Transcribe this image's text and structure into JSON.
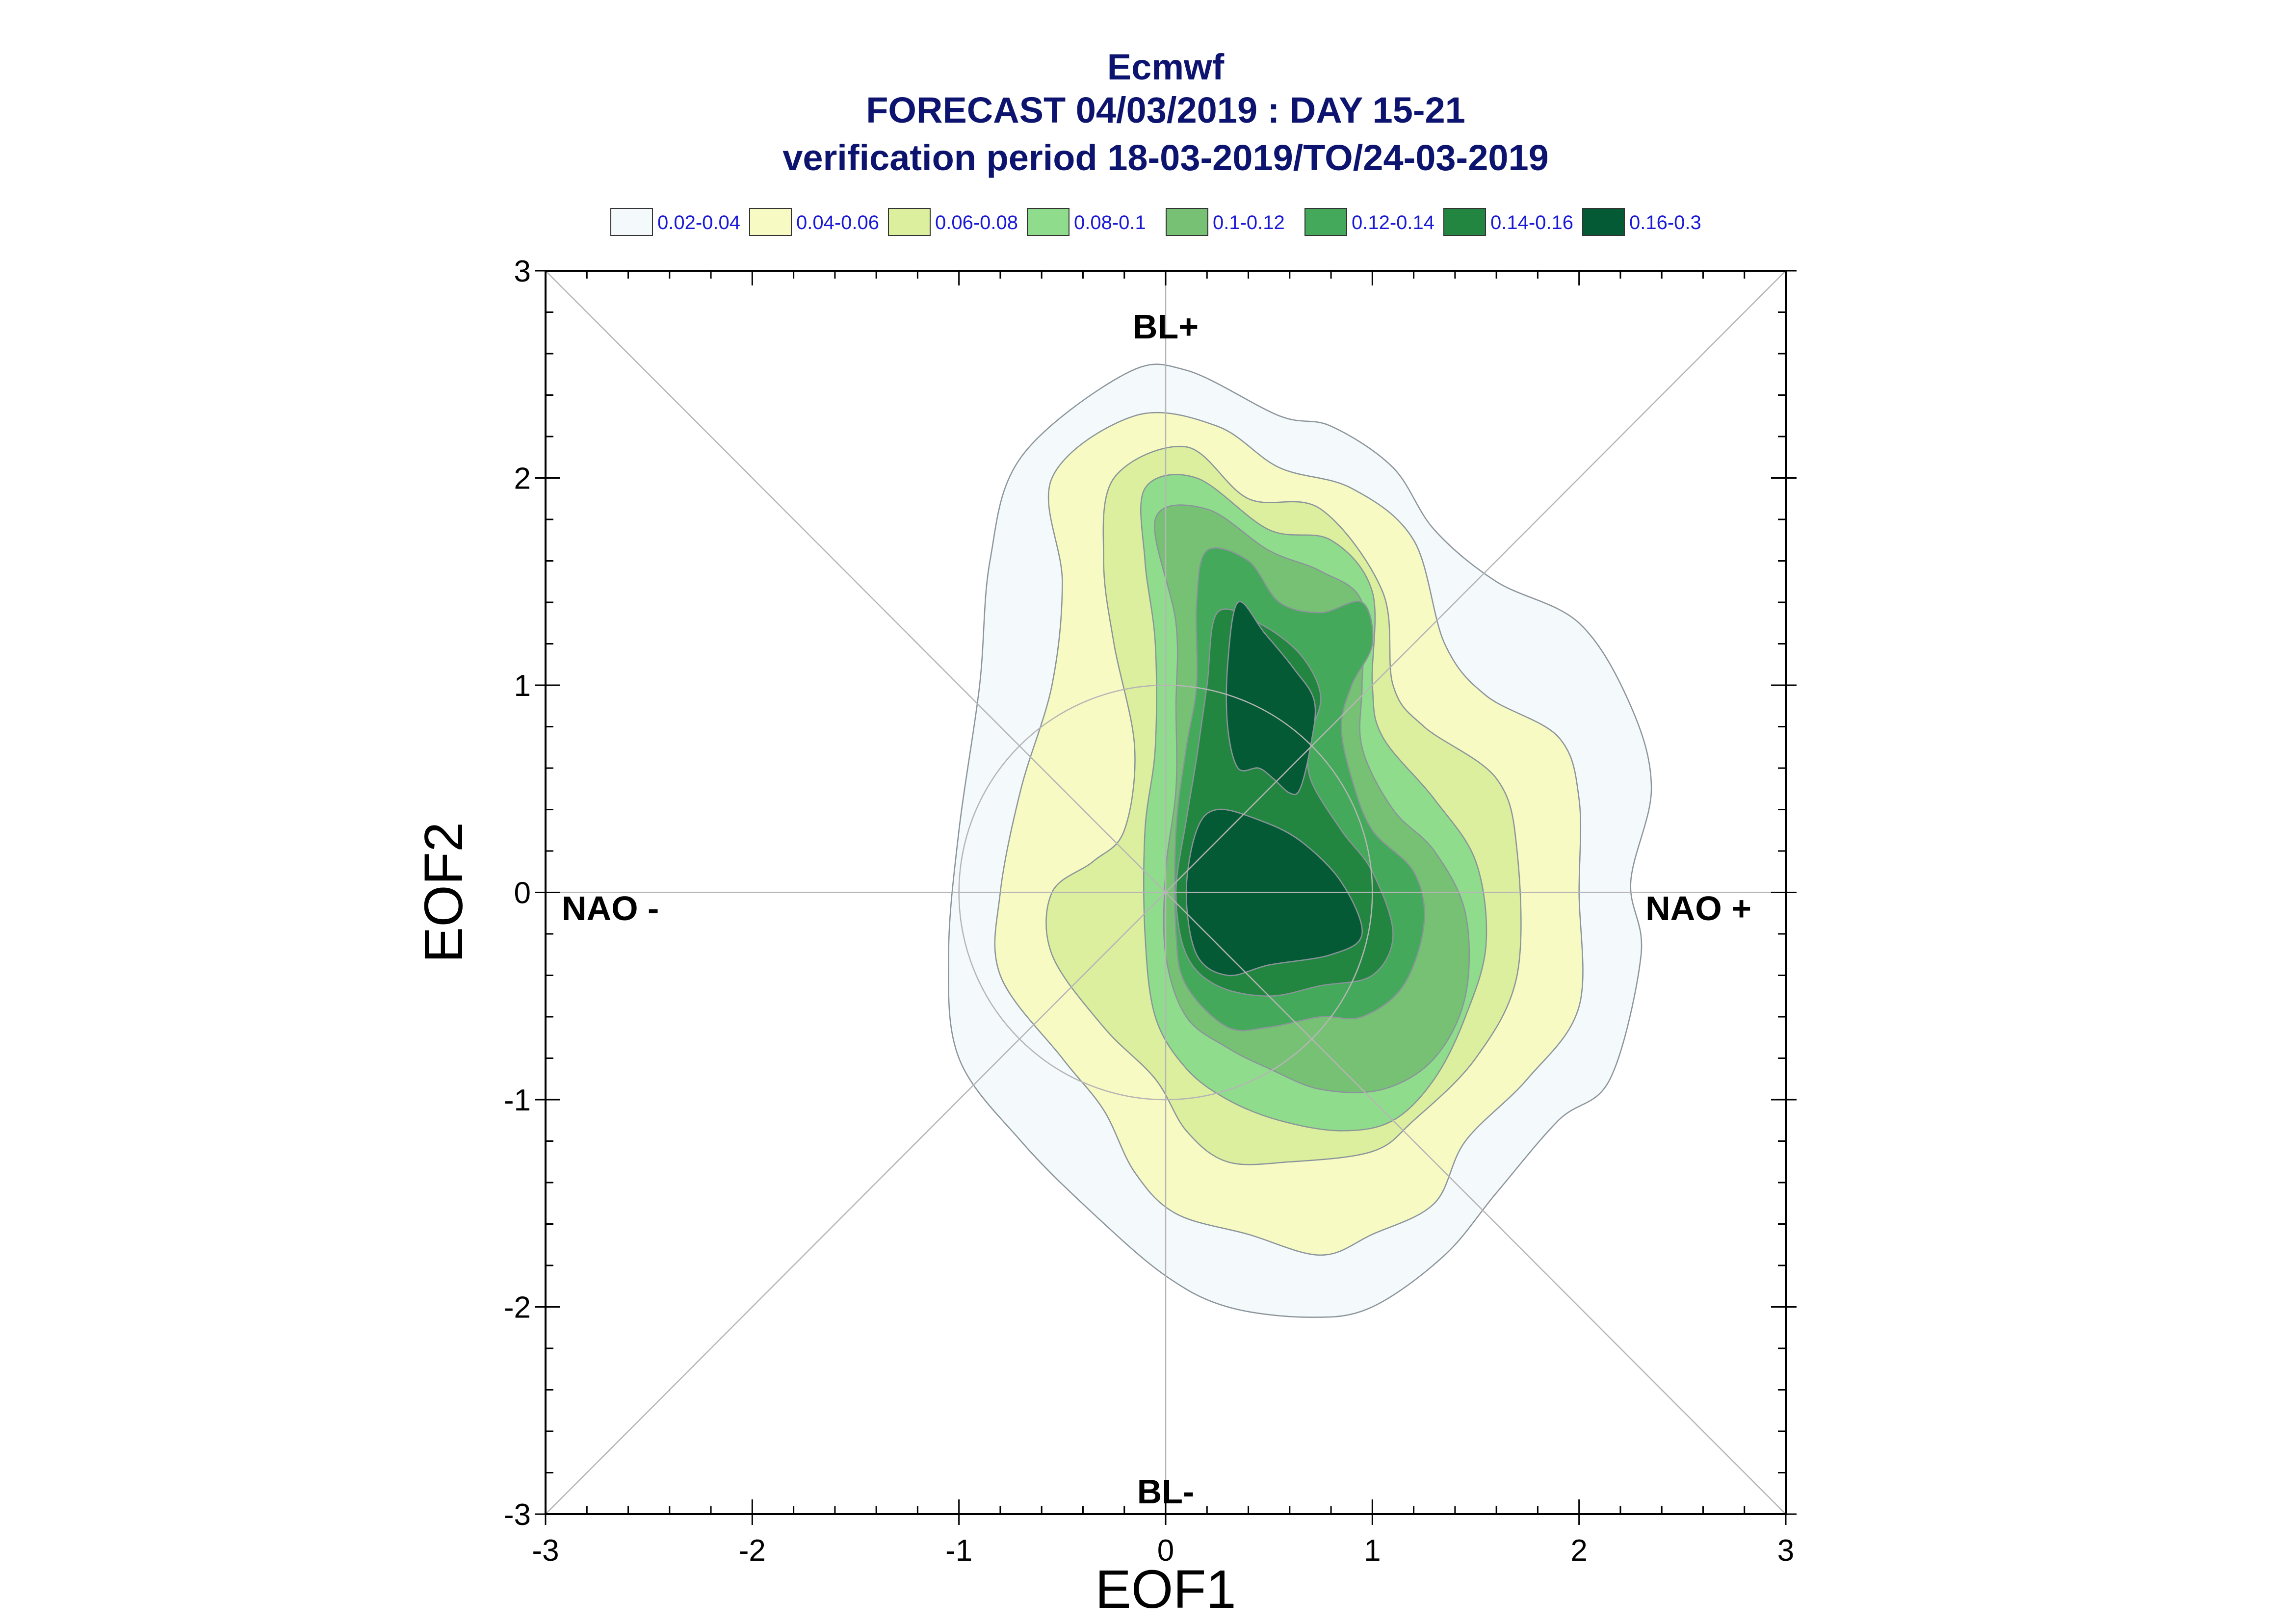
{
  "chart_data": {
    "type": "contour",
    "title_lines": [
      "Ecmwf",
      "FORECAST 04/03/2019 : DAY 15-21",
      "verification period 18-03-2019/TO/24-03-2019"
    ],
    "xlabel": "EOF1",
    "ylabel": "EOF2",
    "xlim": [
      -3,
      3
    ],
    "ylim": [
      -3,
      3
    ],
    "xticks": [
      "-3",
      "-2",
      "-1",
      "0",
      "1",
      "2",
      "3"
    ],
    "yticks": [
      "-3",
      "-2",
      "-1",
      "0",
      "1",
      "2",
      "3"
    ],
    "legend_position": "top",
    "legend": [
      {
        "label": "0.02-0.04",
        "color": "#f4f9fc"
      },
      {
        "label": "0.04-0.06",
        "color": "#f8fac4"
      },
      {
        "label": "0.06-0.08",
        "color": "#dcef9e"
      },
      {
        "label": "0.08-0.1",
        "color": "#8fdc8c"
      },
      {
        "label": "0.1-0.12",
        "color": "#77c174"
      },
      {
        "label": "0.12-0.14",
        "color": "#44a95a"
      },
      {
        "label": "0.14-0.16",
        "color": "#238640"
      },
      {
        "label": "0.16-0.3",
        "color": "#035a35"
      }
    ],
    "regime_labels": {
      "top": "BL+",
      "bottom": "BL-",
      "left": "NAO -",
      "right": "NAO +"
    },
    "reference_circle_radius": 1,
    "contours": [
      {
        "level": "0.02-0.04",
        "points": [
          [
            -0.2,
            2.5
          ],
          [
            0.1,
            2.52
          ],
          [
            0.55,
            2.3
          ],
          [
            0.8,
            2.25
          ],
          [
            1.1,
            2.05
          ],
          [
            1.3,
            1.75
          ],
          [
            1.6,
            1.5
          ],
          [
            2.0,
            1.3
          ],
          [
            2.25,
            0.9
          ],
          [
            2.35,
            0.5
          ],
          [
            2.25,
            0.05
          ],
          [
            2.3,
            -0.3
          ],
          [
            2.15,
            -0.9
          ],
          [
            1.9,
            -1.1
          ],
          [
            1.6,
            -1.45
          ],
          [
            1.35,
            -1.75
          ],
          [
            1.0,
            -2.0
          ],
          [
            0.7,
            -2.05
          ],
          [
            0.3,
            -2.0
          ],
          [
            0.0,
            -1.85
          ],
          [
            -0.35,
            -1.55
          ],
          [
            -0.7,
            -1.2
          ],
          [
            -1.0,
            -0.8
          ],
          [
            -1.05,
            -0.3
          ],
          [
            -1.0,
            0.3
          ],
          [
            -0.9,
            1.0
          ],
          [
            -0.85,
            1.6
          ],
          [
            -0.7,
            2.1
          ]
        ]
      },
      {
        "level": "0.04-0.06",
        "points": [
          [
            -0.15,
            2.3
          ],
          [
            0.25,
            2.25
          ],
          [
            0.55,
            2.05
          ],
          [
            0.9,
            1.95
          ],
          [
            1.2,
            1.7
          ],
          [
            1.35,
            1.2
          ],
          [
            1.55,
            0.95
          ],
          [
            1.9,
            0.75
          ],
          [
            2.0,
            0.45
          ],
          [
            2.0,
            0.0
          ],
          [
            2.0,
            -0.55
          ],
          [
            1.75,
            -0.9
          ],
          [
            1.45,
            -1.2
          ],
          [
            1.3,
            -1.5
          ],
          [
            1.0,
            -1.65
          ],
          [
            0.75,
            -1.75
          ],
          [
            0.4,
            -1.65
          ],
          [
            0.05,
            -1.55
          ],
          [
            -0.15,
            -1.35
          ],
          [
            -0.3,
            -1.05
          ],
          [
            -0.5,
            -0.8
          ],
          [
            -0.8,
            -0.4
          ],
          [
            -0.8,
            0.0
          ],
          [
            -0.7,
            0.5
          ],
          [
            -0.55,
            1.0
          ],
          [
            -0.5,
            1.5
          ],
          [
            -0.55,
            2.0
          ]
        ]
      },
      {
        "level": "0.06-0.08",
        "points": [
          [
            -0.25,
            2.0
          ],
          [
            0.1,
            2.15
          ],
          [
            0.4,
            1.9
          ],
          [
            0.75,
            1.85
          ],
          [
            1.05,
            1.45
          ],
          [
            1.1,
            1.0
          ],
          [
            1.25,
            0.8
          ],
          [
            1.6,
            0.55
          ],
          [
            1.7,
            0.2
          ],
          [
            1.7,
            -0.4
          ],
          [
            1.5,
            -0.8
          ],
          [
            1.2,
            -1.1
          ],
          [
            1.0,
            -1.25
          ],
          [
            0.6,
            -1.3
          ],
          [
            0.3,
            -1.3
          ],
          [
            0.1,
            -1.15
          ],
          [
            -0.05,
            -0.9
          ],
          [
            -0.3,
            -0.65
          ],
          [
            -0.55,
            -0.3
          ],
          [
            -0.55,
            0.0
          ],
          [
            -0.35,
            0.15
          ],
          [
            -0.2,
            0.3
          ],
          [
            -0.15,
            0.7
          ],
          [
            -0.25,
            1.2
          ],
          [
            -0.3,
            1.6
          ]
        ]
      },
      {
        "level": "0.08-0.1",
        "points": [
          [
            -0.1,
            1.95
          ],
          [
            0.15,
            2.0
          ],
          [
            0.5,
            1.75
          ],
          [
            0.8,
            1.7
          ],
          [
            1.0,
            1.45
          ],
          [
            1.0,
            1.0
          ],
          [
            1.05,
            0.75
          ],
          [
            1.3,
            0.45
          ],
          [
            1.5,
            0.15
          ],
          [
            1.55,
            -0.25
          ],
          [
            1.45,
            -0.6
          ],
          [
            1.3,
            -0.9
          ],
          [
            1.1,
            -1.1
          ],
          [
            0.85,
            -1.15
          ],
          [
            0.55,
            -1.1
          ],
          [
            0.3,
            -1.0
          ],
          [
            0.1,
            -0.85
          ],
          [
            -0.05,
            -0.6
          ],
          [
            -0.1,
            -0.2
          ],
          [
            -0.1,
            0.3
          ],
          [
            -0.05,
            0.7
          ],
          [
            -0.05,
            1.2
          ],
          [
            -0.1,
            1.6
          ]
        ]
      },
      {
        "level": "0.1-0.12",
        "points": [
          [
            -0.05,
            1.8
          ],
          [
            0.2,
            1.85
          ],
          [
            0.5,
            1.65
          ],
          [
            0.75,
            1.55
          ],
          [
            0.95,
            1.4
          ],
          [
            0.95,
            1.0
          ],
          [
            0.95,
            0.7
          ],
          [
            1.1,
            0.4
          ],
          [
            1.3,
            0.2
          ],
          [
            1.45,
            -0.1
          ],
          [
            1.45,
            -0.5
          ],
          [
            1.3,
            -0.8
          ],
          [
            1.05,
            -0.95
          ],
          [
            0.75,
            -0.95
          ],
          [
            0.5,
            -0.85
          ],
          [
            0.3,
            -0.75
          ],
          [
            0.1,
            -0.6
          ],
          [
            0.0,
            -0.3
          ],
          [
            0.0,
            0.1
          ],
          [
            0.05,
            0.5
          ],
          [
            0.05,
            0.9
          ],
          [
            0.05,
            1.3
          ]
        ]
      },
      {
        "level": "0.12-0.14",
        "points": [
          [
            0.2,
            1.65
          ],
          [
            0.4,
            1.6
          ],
          [
            0.55,
            1.4
          ],
          [
            0.75,
            1.35
          ],
          [
            0.95,
            1.4
          ],
          [
            1.0,
            1.2
          ],
          [
            0.9,
            1.0
          ],
          [
            0.85,
            0.8
          ],
          [
            0.9,
            0.55
          ],
          [
            1.0,
            0.3
          ],
          [
            1.2,
            0.1
          ],
          [
            1.25,
            -0.15
          ],
          [
            1.15,
            -0.45
          ],
          [
            0.95,
            -0.6
          ],
          [
            0.75,
            -0.6
          ],
          [
            0.5,
            -0.65
          ],
          [
            0.3,
            -0.65
          ],
          [
            0.1,
            -0.45
          ],
          [
            0.05,
            -0.2
          ],
          [
            0.05,
            0.3
          ],
          [
            0.1,
            0.7
          ],
          [
            0.15,
            1.0
          ],
          [
            0.15,
            1.4
          ]
        ]
      },
      {
        "level": "0.14-0.16",
        "points": [
          [
            0.25,
            1.35
          ],
          [
            0.45,
            1.3
          ],
          [
            0.65,
            1.15
          ],
          [
            0.75,
            0.95
          ],
          [
            0.7,
            0.75
          ],
          [
            0.7,
            0.55
          ],
          [
            0.85,
            0.3
          ],
          [
            1.0,
            0.1
          ],
          [
            1.1,
            -0.2
          ],
          [
            1.0,
            -0.4
          ],
          [
            0.75,
            -0.45
          ],
          [
            0.5,
            -0.5
          ],
          [
            0.25,
            -0.45
          ],
          [
            0.1,
            -0.3
          ],
          [
            0.05,
            0.0
          ],
          [
            0.1,
            0.35
          ],
          [
            0.15,
            0.65
          ],
          [
            0.2,
            1.0
          ]
        ]
      },
      {
        "level": "0.16-0.3",
        "points": [
          [
            0.35,
            1.4
          ],
          [
            0.48,
            1.25
          ],
          [
            0.62,
            1.08
          ],
          [
            0.72,
            0.92
          ],
          [
            0.7,
            0.7
          ],
          [
            0.65,
            0.5
          ],
          [
            0.6,
            0.48
          ],
          [
            0.52,
            0.55
          ],
          [
            0.45,
            0.6
          ],
          [
            0.35,
            0.6
          ],
          [
            0.3,
            0.8
          ],
          [
            0.3,
            1.1
          ]
        ]
      },
      {
        "level": "0.16-0.3",
        "points": [
          [
            0.25,
            0.4
          ],
          [
            0.45,
            0.35
          ],
          [
            0.65,
            0.25
          ],
          [
            0.85,
            0.05
          ],
          [
            0.95,
            -0.2
          ],
          [
            0.8,
            -0.3
          ],
          [
            0.5,
            -0.35
          ],
          [
            0.3,
            -0.4
          ],
          [
            0.15,
            -0.3
          ],
          [
            0.1,
            0.0
          ],
          [
            0.15,
            0.3
          ]
        ]
      }
    ]
  }
}
